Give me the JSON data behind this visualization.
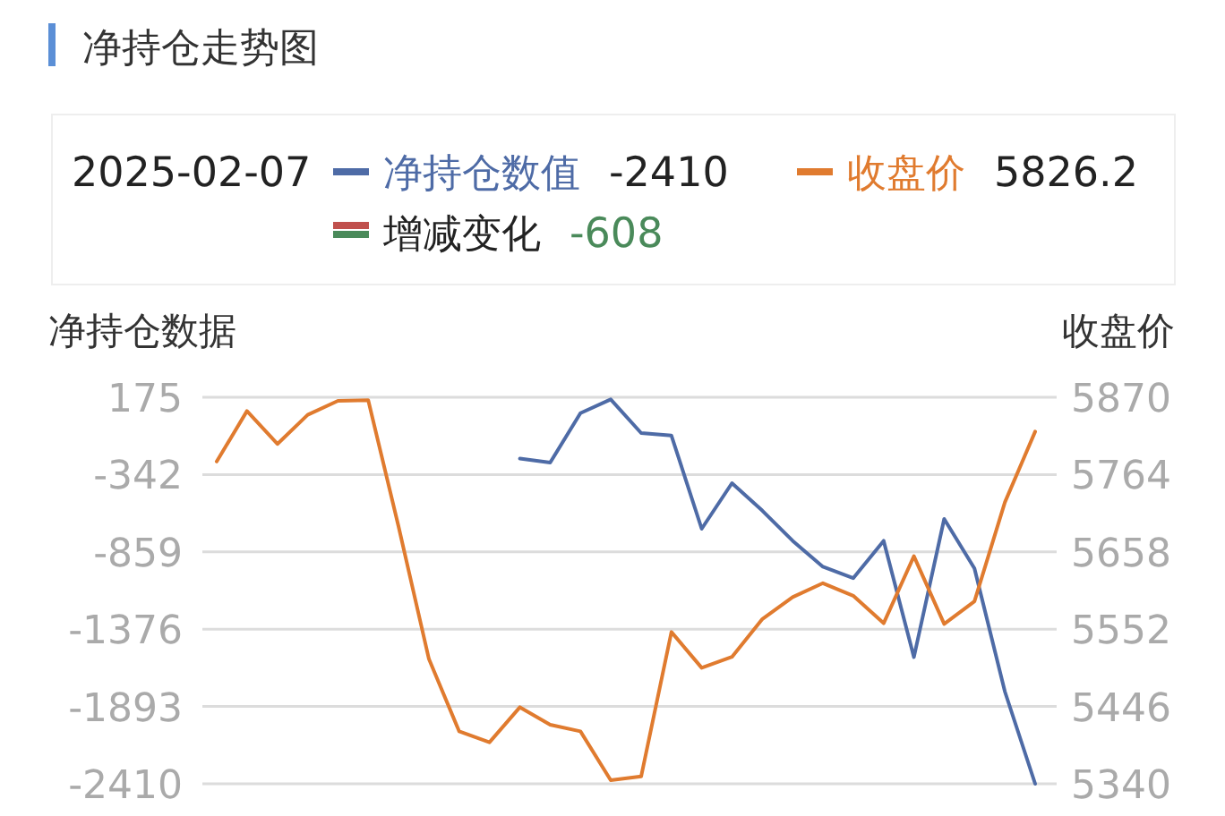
{
  "chart_data": {
    "type": "line",
    "title": "净持仓走势图",
    "ylabel": "净持仓数据",
    "y2label": "收盘价",
    "categories": [
      null,
      null,
      null,
      null,
      null,
      null,
      null,
      null,
      null,
      null,
      null,
      null,
      null,
      null,
      null,
      null,
      null,
      null,
      null,
      null,
      null,
      null,
      null,
      null,
      null,
      null,
      null,
      null
    ],
    "series": [
      {
        "name": "净持仓数值",
        "color": "#4e6ba6",
        "values": [
          null,
          null,
          null,
          null,
          null,
          null,
          null,
          null,
          null,
          null,
          -235,
          -262,
          68,
          161,
          -64,
          -81,
          -705,
          -400,
          -584,
          -785,
          -958,
          -1035,
          -785,
          -1563,
          -639,
          -969,
          -1794,
          -2410
        ]
      },
      {
        "name": "收盘价",
        "color": "#e07b2f",
        "axis": "y2",
        "values": [
          5782,
          5851,
          5806,
          5846,
          5865,
          5866,
          5692,
          5511,
          5412,
          5397,
          5445,
          5421,
          5412,
          5345,
          5350,
          5548,
          5499,
          5514,
          5566,
          5596,
          5615,
          5598,
          5560,
          5652,
          5559,
          5590,
          5726,
          5823
        ]
      },
      {
        "name": "增减变化",
        "type": "bar",
        "color": "#c0504d",
        "values": [
          null,
          null,
          null,
          null,
          null,
          null,
          null,
          null,
          null,
          null,
          null,
          null,
          null,
          null,
          null,
          null,
          null,
          null,
          null,
          null,
          null,
          null,
          null,
          null,
          null,
          null,
          null,
          null
        ]
      }
    ],
    "annotations": [
      "2025-02-07",
      "-2410",
      "5826.2",
      "-608"
    ],
    "ylim": [
      -2410,
      175
    ],
    "yticks": [
      175,
      -342,
      -859,
      -1376,
      -1893,
      -2410
    ],
    "y2lim": [
      5340,
      5870
    ],
    "y2ticks": [
      5870,
      5764,
      5658,
      5552,
      5446,
      5340
    ],
    "grid": "y",
    "legend": "top"
  }
}
